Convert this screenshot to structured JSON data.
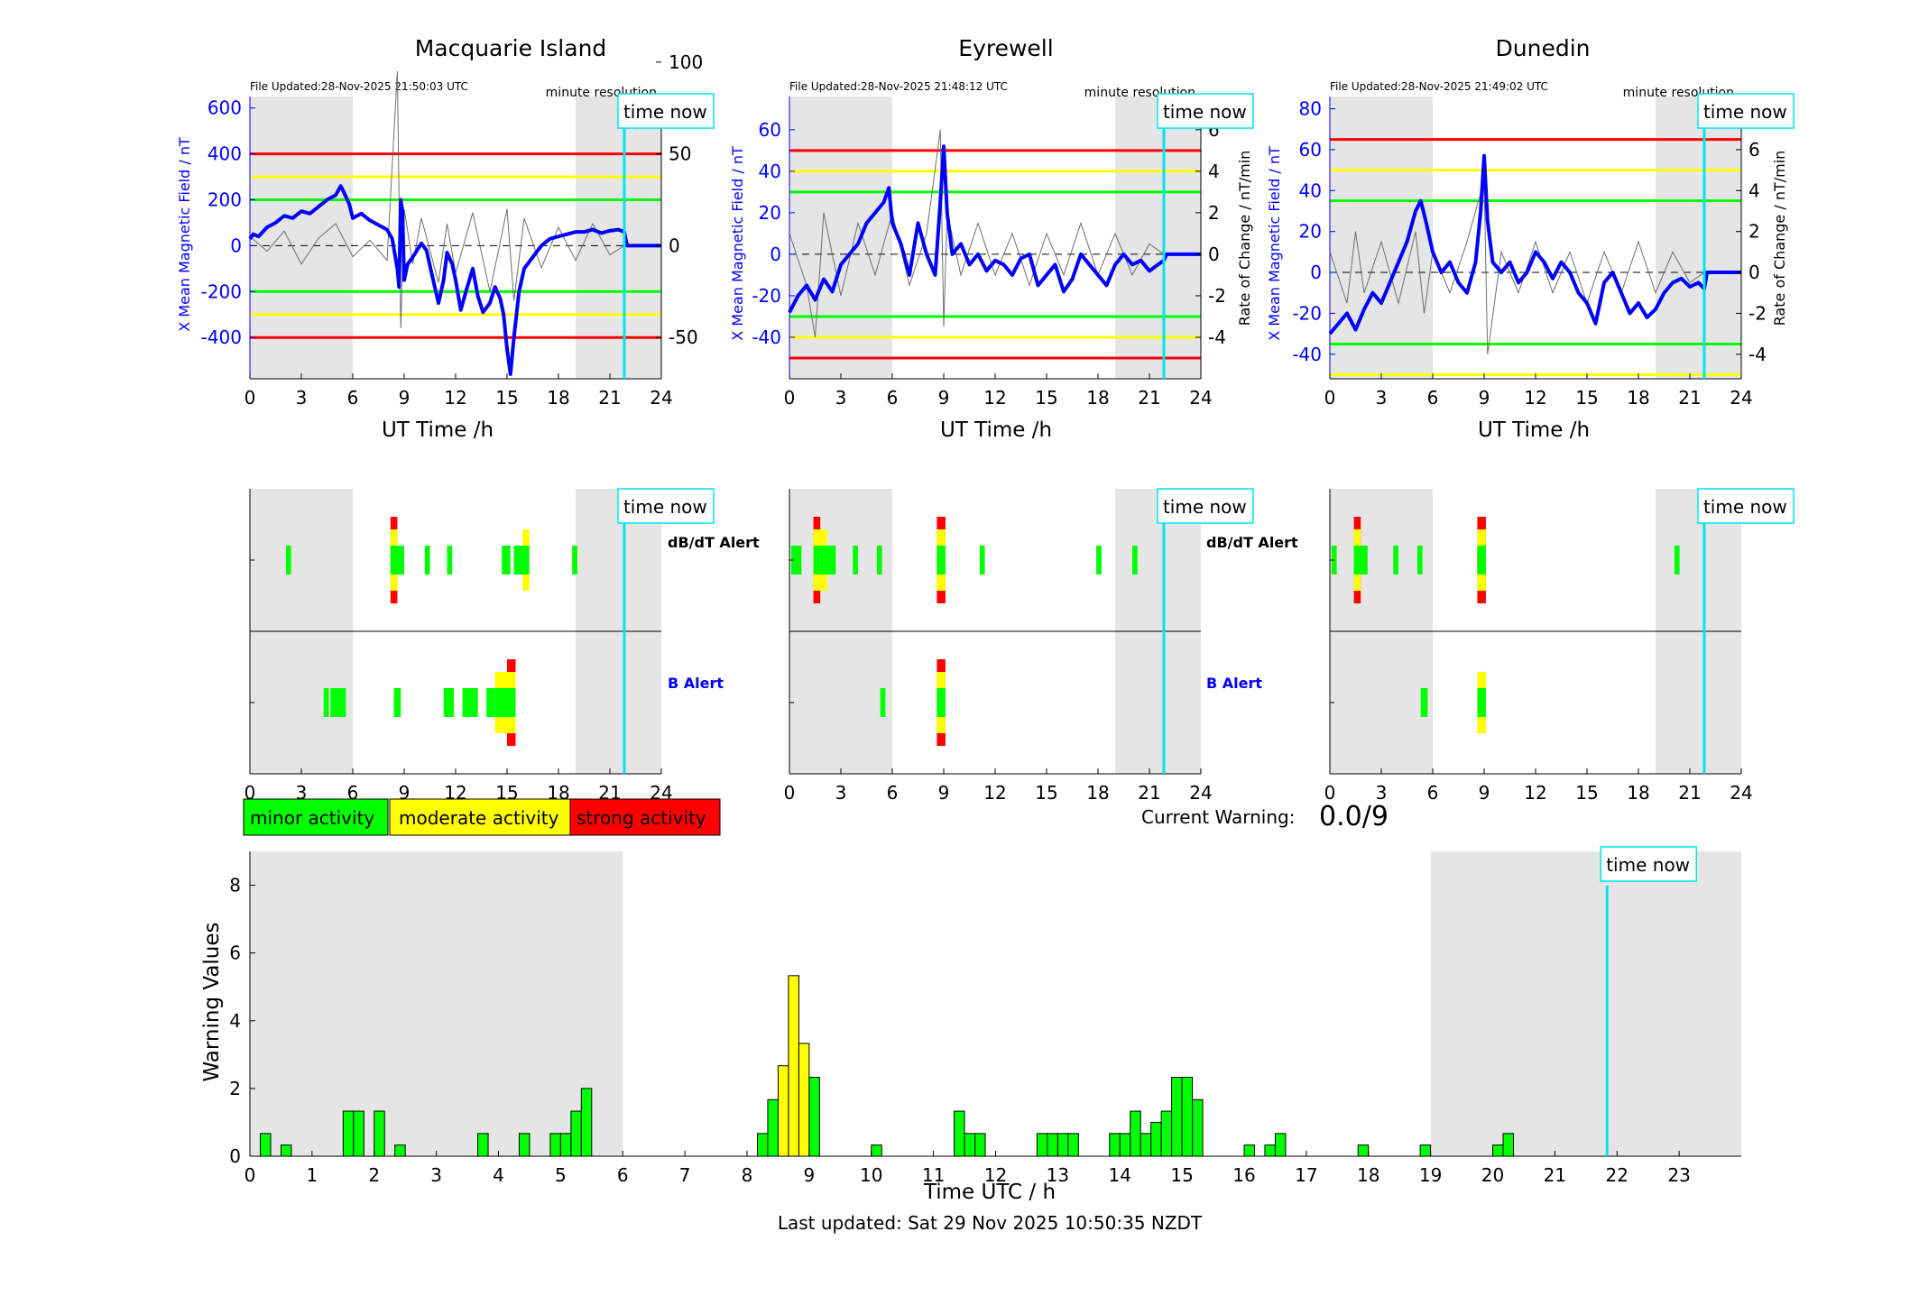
{
  "figure": {
    "minor_label": "minor activity",
    "moderate_label": "moderate activity",
    "strong_label": "strong activity",
    "current_warning_label": "Current Warning:",
    "current_warning_value": "0.0/9",
    "last_updated": "Last updated: Sat 29 Nov 2025 10:50:35 NZDT",
    "time_now_label": "time now",
    "time_now_hours": 21.84,
    "shade_periods_h": [
      [
        0,
        6
      ],
      [
        19,
        24
      ]
    ]
  },
  "colors": {
    "field": "#0000ff",
    "roc": "#6e6e6e",
    "red": "#ff0000",
    "yellow": "#ffff00",
    "green": "#00ff00",
    "cyan": "#00e5ee",
    "shade": "#e5e5e5"
  },
  "chart_data": [
    {
      "type": "line",
      "title": "Macquarie Island",
      "file_updated": "File Updated:28-Nov-2025 21:50:03 UTC",
      "resolution": "minute resolution",
      "xlabel": "UT Time /h",
      "ylabel_left": "X Mean Magnetic Field / nT",
      "ylabel_right": "",
      "xlim": [
        0,
        24
      ],
      "xticks": [
        0,
        3,
        6,
        9,
        12,
        15,
        18,
        21,
        24
      ],
      "ylim_left": [
        -580,
        650
      ],
      "yticks_left": [
        -400,
        -200,
        0,
        200,
        400,
        600
      ],
      "ylim_right": [
        -72.5,
        81.25
      ],
      "yticks_right": [
        -50,
        0,
        50,
        100
      ],
      "thresholds": {
        "red": 400,
        "yellow": 300,
        "green": 200
      },
      "series": [
        {
          "role": "field",
          "x": [
            0,
            0.2,
            0.5,
            1,
            1.5,
            2,
            2.5,
            3,
            3.5,
            4,
            4.5,
            5,
            5.3,
            5.5,
            5.8,
            6,
            6.5,
            7,
            7.5,
            8,
            8.3,
            8.6,
            8.7,
            8.8,
            8.9,
            9,
            9.2,
            9.5,
            10,
            10.3,
            10.6,
            11,
            11.3,
            11.5,
            11.8,
            12,
            12.3,
            12.6,
            13,
            13.3,
            13.6,
            14,
            14.3,
            14.6,
            14.8,
            15,
            15.2,
            15.4,
            15.7,
            16,
            16.5,
            17,
            17.5,
            18,
            18.5,
            19,
            19.5,
            20,
            20.5,
            21,
            21.5,
            21.84,
            22,
            24
          ],
          "y": [
            30,
            50,
            40,
            80,
            100,
            130,
            120,
            150,
            140,
            170,
            200,
            220,
            260,
            230,
            180,
            120,
            140,
            110,
            90,
            70,
            30,
            -100,
            -180,
            200,
            150,
            -150,
            -80,
            -50,
            10,
            -20,
            -120,
            -250,
            -150,
            -30,
            -80,
            -150,
            -280,
            -200,
            -100,
            -220,
            -290,
            -250,
            -180,
            -230,
            -300,
            -450,
            -560,
            -400,
            -200,
            -100,
            -50,
            0,
            30,
            40,
            50,
            60,
            60,
            70,
            55,
            65,
            70,
            60,
            0,
            0
          ]
        },
        {
          "role": "roc",
          "x": [
            0,
            1,
            2,
            3,
            4,
            5,
            6,
            7,
            8,
            8.6,
            8.8,
            9,
            9.5,
            10,
            11,
            11.5,
            12,
            13,
            14,
            15,
            15.4,
            16,
            17,
            18,
            19,
            20,
            21,
            21.84
          ],
          "y": [
            5,
            -3,
            8,
            -10,
            4,
            12,
            -6,
            3,
            -8,
            95,
            -45,
            20,
            -10,
            15,
            -20,
            12,
            -15,
            18,
            -25,
            20,
            -30,
            15,
            -12,
            10,
            -8,
            12,
            -5,
            0
          ]
        }
      ]
    },
    {
      "type": "line",
      "title": "Eyrewell",
      "file_updated": "File Updated:28-Nov-2025 21:48:12 UTC",
      "resolution": "minute resolution",
      "xlabel": "UT Time /h",
      "ylabel_left": "X Mean Magnetic Field / nT",
      "ylabel_right": "Rate of Change / nT/min",
      "xlim": [
        0,
        24
      ],
      "xticks": [
        0,
        3,
        6,
        9,
        12,
        15,
        18,
        21,
        24
      ],
      "ylim_left": [
        -60,
        76
      ],
      "yticks_left": [
        -40,
        -20,
        0,
        20,
        40,
        60
      ],
      "ylim_right": [
        -6,
        7.6
      ],
      "yticks_right": [
        -4,
        -2,
        0,
        2,
        4,
        6
      ],
      "thresholds": {
        "red": 50,
        "yellow": 40,
        "green": 30
      },
      "series": [
        {
          "role": "field",
          "x": [
            0,
            0.5,
            1,
            1.5,
            2,
            2.5,
            3,
            3.5,
            4,
            4.5,
            5,
            5.5,
            5.8,
            6,
            6.5,
            7,
            7.5,
            8,
            8.5,
            8.8,
            9,
            9.2,
            9.5,
            10,
            10.5,
            11,
            11.5,
            12,
            12.5,
            13,
            13.5,
            14,
            14.5,
            15,
            15.5,
            16,
            16.5,
            17,
            17.5,
            18,
            18.5,
            19,
            19.5,
            20,
            20.5,
            21,
            21.5,
            21.84,
            22,
            24
          ],
          "y": [
            -28,
            -20,
            -15,
            -22,
            -12,
            -18,
            -5,
            0,
            5,
            15,
            20,
            25,
            32,
            15,
            5,
            -10,
            15,
            0,
            -10,
            25,
            52,
            20,
            0,
            5,
            -5,
            0,
            -8,
            -3,
            -5,
            -10,
            -2,
            0,
            -15,
            -10,
            -5,
            -18,
            -12,
            0,
            -5,
            -10,
            -15,
            -5,
            0,
            -5,
            -3,
            -8,
            -5,
            -3,
            0,
            0
          ]
        },
        {
          "role": "roc",
          "x": [
            0,
            1,
            1.5,
            2,
            3,
            4,
            5,
            6,
            7,
            8,
            8.8,
            9,
            9.2,
            10,
            11,
            12,
            13,
            14,
            15,
            16,
            17,
            18,
            19,
            20,
            21,
            21.84
          ],
          "y": [
            1,
            -1.5,
            -4,
            2,
            -2,
            1.5,
            -1,
            2,
            -1.5,
            1,
            6,
            -3.5,
            2,
            -1,
            1.5,
            -1,
            1,
            -1.5,
            1,
            -1,
            1.5,
            -1,
            1,
            -1,
            0.5,
            0
          ]
        }
      ]
    },
    {
      "type": "line",
      "title": "Dunedin",
      "file_updated": "File Updated:28-Nov-2025 21:49:02 UTC",
      "resolution": "minute resolution",
      "xlabel": "UT Time /h",
      "ylabel_left": "X Mean Magnetic Field / nT",
      "ylabel_right": "Rate of Change / nT/min",
      "xlim": [
        0,
        24
      ],
      "xticks": [
        0,
        3,
        6,
        9,
        12,
        15,
        18,
        21,
        24
      ],
      "ylim_left": [
        -52,
        86
      ],
      "yticks_left": [
        -40,
        -20,
        0,
        20,
        40,
        60,
        80
      ],
      "ylim_right": [
        -5.2,
        8.6
      ],
      "yticks_right": [
        -4,
        -2,
        0,
        2,
        4,
        6,
        8
      ],
      "thresholds": {
        "red": 65,
        "yellow": 50,
        "green": 35
      },
      "series": [
        {
          "role": "field",
          "x": [
            0,
            0.5,
            1,
            1.5,
            2,
            2.5,
            3,
            3.5,
            4,
            4.5,
            5,
            5.3,
            5.6,
            6,
            6.5,
            7,
            7.5,
            8,
            8.5,
            8.8,
            9,
            9.2,
            9.5,
            10,
            10.5,
            11,
            11.5,
            12,
            12.5,
            13,
            13.5,
            14,
            14.5,
            15,
            15.5,
            16,
            16.5,
            17,
            17.5,
            18,
            18.5,
            19,
            19.5,
            20,
            20.5,
            21,
            21.5,
            21.84,
            22,
            24
          ],
          "y": [
            -30,
            -25,
            -20,
            -28,
            -18,
            -10,
            -15,
            -5,
            5,
            15,
            30,
            35,
            25,
            10,
            0,
            5,
            -5,
            -10,
            5,
            30,
            57,
            25,
            5,
            0,
            5,
            -5,
            0,
            10,
            5,
            -3,
            5,
            0,
            -10,
            -15,
            -25,
            -5,
            0,
            -10,
            -20,
            -15,
            -22,
            -18,
            -10,
            -5,
            -3,
            -7,
            -5,
            -8,
            0,
            0
          ]
        },
        {
          "role": "roc",
          "x": [
            0,
            1,
            1.5,
            2,
            3,
            4,
            5,
            5.5,
            6,
            7,
            8,
            9,
            9.2,
            10,
            11,
            12,
            13,
            14,
            15,
            16,
            17,
            18,
            19,
            20,
            21,
            21.84
          ],
          "y": [
            1,
            -1.5,
            2,
            -1,
            1.5,
            -1.5,
            2,
            -2,
            1,
            -1,
            1.5,
            4.5,
            -4,
            1,
            -1,
            1.5,
            -1,
            1,
            -1.5,
            1,
            -1,
            1.5,
            -1,
            1,
            -0.5,
            0
          ]
        }
      ]
    },
    {
      "type": "bar",
      "title": "",
      "xlabel": "Time UTC / h",
      "ylabel": "Warning Values",
      "xlim": [
        0,
        24
      ],
      "xticks": [
        0,
        1,
        2,
        3,
        4,
        5,
        6,
        7,
        8,
        9,
        10,
        11,
        12,
        13,
        14,
        15,
        16,
        17,
        18,
        19,
        20,
        21,
        22,
        23
      ],
      "ylim": [
        0,
        9
      ],
      "yticks": [
        0,
        2,
        4,
        6,
        8
      ],
      "bar_width_h": 0.1667,
      "bars": [
        {
          "x": 0.167,
          "y": 0.67
        },
        {
          "x": 0.5,
          "y": 0.33
        },
        {
          "x": 1.5,
          "y": 1.33
        },
        {
          "x": 1.667,
          "y": 1.33
        },
        {
          "x": 2.0,
          "y": 1.33
        },
        {
          "x": 2.333,
          "y": 0.33
        },
        {
          "x": 3.667,
          "y": 0.67
        },
        {
          "x": 4.333,
          "y": 0.67
        },
        {
          "x": 4.833,
          "y": 0.67
        },
        {
          "x": 5.0,
          "y": 0.67
        },
        {
          "x": 5.167,
          "y": 1.33
        },
        {
          "x": 5.333,
          "y": 2.0
        },
        {
          "x": 8.167,
          "y": 0.67
        },
        {
          "x": 8.333,
          "y": 1.67
        },
        {
          "x": 8.5,
          "y": 2.67
        },
        {
          "x": 8.667,
          "y": 5.33
        },
        {
          "x": 8.833,
          "y": 3.33
        },
        {
          "x": 9.0,
          "y": 2.33
        },
        {
          "x": 10.0,
          "y": 0.33
        },
        {
          "x": 11.333,
          "y": 1.33
        },
        {
          "x": 11.5,
          "y": 0.67
        },
        {
          "x": 11.667,
          "y": 0.67
        },
        {
          "x": 12.667,
          "y": 0.67
        },
        {
          "x": 12.833,
          "y": 0.67
        },
        {
          "x": 13.0,
          "y": 0.67
        },
        {
          "x": 13.167,
          "y": 0.67
        },
        {
          "x": 13.833,
          "y": 0.67
        },
        {
          "x": 14.0,
          "y": 0.67
        },
        {
          "x": 14.167,
          "y": 1.33
        },
        {
          "x": 14.333,
          "y": 0.67
        },
        {
          "x": 14.5,
          "y": 1.0
        },
        {
          "x": 14.667,
          "y": 1.33
        },
        {
          "x": 14.833,
          "y": 2.33
        },
        {
          "x": 15.0,
          "y": 2.33
        },
        {
          "x": 15.167,
          "y": 1.67
        },
        {
          "x": 16.0,
          "y": 0.33
        },
        {
          "x": 16.333,
          "y": 0.33
        },
        {
          "x": 16.5,
          "y": 0.67
        },
        {
          "x": 17.833,
          "y": 0.33
        },
        {
          "x": 18.833,
          "y": 0.33
        },
        {
          "x": 20.0,
          "y": 0.33
        },
        {
          "x": 20.167,
          "y": 0.67
        }
      ],
      "level_colors": {
        "green_below": 2.5,
        "yellow_below": 5.5
      }
    }
  ],
  "alerts": [
    {
      "station": "Macquarie Island",
      "dbdt_label": "dB/dT Alert",
      "b_label": "B Alert",
      "dbdt": [
        [
          2.1,
          2.4,
          1
        ],
        [
          8.2,
          8.6,
          3
        ],
        [
          8.6,
          9.0,
          1
        ],
        [
          10.2,
          10.5,
          1
        ],
        [
          11.5,
          11.8,
          1
        ],
        [
          14.7,
          15.2,
          1
        ],
        [
          15.4,
          15.9,
          1
        ],
        [
          15.9,
          16.3,
          2
        ],
        [
          18.8,
          19.1,
          1
        ]
      ],
      "b": [
        [
          4.3,
          4.6,
          1
        ],
        [
          4.7,
          5.6,
          1
        ],
        [
          8.4,
          8.8,
          1
        ],
        [
          11.3,
          11.9,
          1
        ],
        [
          12.4,
          13.3,
          1
        ],
        [
          13.8,
          14.3,
          1
        ],
        [
          14.3,
          15.0,
          2
        ],
        [
          15.0,
          15.5,
          3
        ]
      ]
    },
    {
      "station": "Eyrewell",
      "dbdt_label": "dB/dT Alert",
      "b_label": "B Alert",
      "dbdt": [
        [
          0.1,
          0.7,
          1
        ],
        [
          1.4,
          1.8,
          3
        ],
        [
          1.8,
          2.2,
          2
        ],
        [
          2.2,
          2.7,
          1
        ],
        [
          3.7,
          4.0,
          1
        ],
        [
          5.1,
          5.4,
          1
        ],
        [
          8.6,
          9.1,
          3
        ],
        [
          11.1,
          11.4,
          1
        ],
        [
          17.9,
          18.2,
          1
        ],
        [
          20.0,
          20.3,
          1
        ]
      ],
      "b": [
        [
          5.3,
          5.6,
          1
        ],
        [
          8.6,
          9.1,
          3
        ]
      ]
    },
    {
      "station": "Dunedin",
      "dbdt_label": "dB/dT Alert",
      "b_label": "B Alert",
      "dbdt": [
        [
          0.1,
          0.4,
          1
        ],
        [
          1.4,
          1.8,
          3
        ],
        [
          1.8,
          2.2,
          1
        ],
        [
          3.7,
          4.0,
          1
        ],
        [
          5.1,
          5.4,
          1
        ],
        [
          8.6,
          9.1,
          3
        ],
        [
          20.1,
          20.4,
          1
        ]
      ],
      "b": [
        [
          5.3,
          5.7,
          1
        ],
        [
          8.6,
          9.1,
          2
        ]
      ]
    }
  ]
}
